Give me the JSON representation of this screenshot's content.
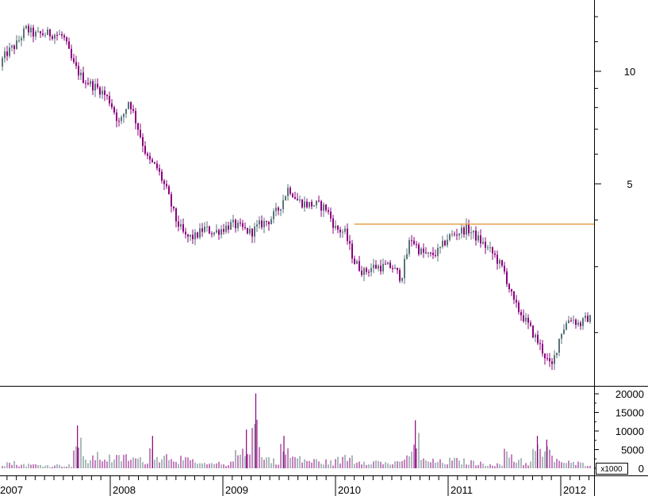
{
  "chart_data": [
    {
      "type": "candlestick",
      "panel": "price",
      "scale": "log",
      "ylim": [
        1.3,
        14.5
      ],
      "y_ticks": [
        "5",
        "10"
      ],
      "colors": {
        "up": "#5a7377",
        "down": "#8b007d",
        "resistance_line": "#e8a050",
        "axis": "#000000"
      },
      "resistance_line": {
        "value": 3.9,
        "from": "2010-03",
        "to": "2012-06"
      },
      "series": [
        {
          "x": [
            "2007-01",
            "2007-02",
            "2007-03",
            "2007-04",
            "2007-05",
            "2007-06",
            "2007-07",
            "2007-08",
            "2007-09",
            "2007-10",
            "2007-11",
            "2007-12",
            "2008-01",
            "2008-02",
            "2008-03",
            "2008-04",
            "2008-05",
            "2008-06",
            "2008-07",
            "2008-08",
            "2008-09",
            "2008-10",
            "2008-11",
            "2008-12",
            "2009-01",
            "2009-02",
            "2009-03",
            "2009-04",
            "2009-05",
            "2009-06",
            "2009-07",
            "2009-08",
            "2009-09",
            "2009-10",
            "2009-11",
            "2009-12",
            "2010-01",
            "2010-02",
            "2010-03",
            "2010-04",
            "2010-05",
            "2010-06",
            "2010-07",
            "2010-08",
            "2010-09",
            "2010-10",
            "2010-11",
            "2010-12",
            "2011-01",
            "2011-02",
            "2011-03",
            "2011-04",
            "2011-05",
            "2011-06",
            "2011-07",
            "2011-08",
            "2011-09",
            "2011-10",
            "2011-11",
            "2011-12",
            "2012-01",
            "2012-02",
            "2012-03",
            "2012-04",
            "2012-05"
          ],
          "close": [
            10.3,
            11.2,
            11.8,
            13.0,
            12.5,
            12.6,
            12.6,
            12.4,
            10.5,
            9.6,
            9.2,
            8.9,
            8.3,
            7.2,
            8.4,
            7.0,
            5.8,
            5.5,
            4.8,
            4.0,
            3.6,
            3.6,
            3.8,
            3.7,
            3.8,
            3.9,
            3.8,
            3.7,
            3.9,
            4.0,
            4.3,
            4.9,
            4.5,
            4.4,
            4.4,
            4.3,
            3.8,
            3.7,
            3.1,
            2.9,
            3.0,
            3.0,
            3.0,
            2.8,
            3.6,
            3.3,
            3.2,
            3.3,
            3.6,
            3.7,
            3.8,
            3.6,
            3.4,
            3.2,
            2.9,
            2.4,
            2.2,
            2.0,
            1.8,
            1.6,
            2.0,
            2.2,
            2.1,
            2.2,
            2.0
          ]
        }
      ]
    },
    {
      "type": "bar",
      "panel": "volume",
      "ylim": [
        0,
        21000
      ],
      "y_ticks": [
        "0",
        "5000",
        "10000",
        "15000",
        "20000"
      ],
      "unit_label": "x1000",
      "x_labels": [
        "2007",
        "2008",
        "2009",
        "2010",
        "2011",
        "2012"
      ],
      "series": [
        {
          "values": [
            2100,
            2600,
            1800,
            1700,
            1600,
            1300,
            1500,
            1400,
            11500,
            4200,
            5600,
            5100,
            4700,
            5300,
            4600,
            3900,
            8700,
            5100,
            6200,
            4500,
            3700,
            2300,
            1900,
            2200,
            2300,
            6400,
            10400,
            20100,
            4800,
            3800,
            8700,
            5200,
            4300,
            3500,
            3200,
            2800,
            4100,
            5600,
            3900,
            3600,
            3200,
            2600,
            2400,
            4700,
            12900,
            3800,
            3300,
            3100,
            3700,
            3400,
            2900,
            2300,
            2200,
            1800,
            6800,
            4300,
            2600,
            8700,
            7700,
            4800,
            2800,
            2400,
            2200,
            2000,
            2100
          ]
        }
      ]
    }
  ]
}
